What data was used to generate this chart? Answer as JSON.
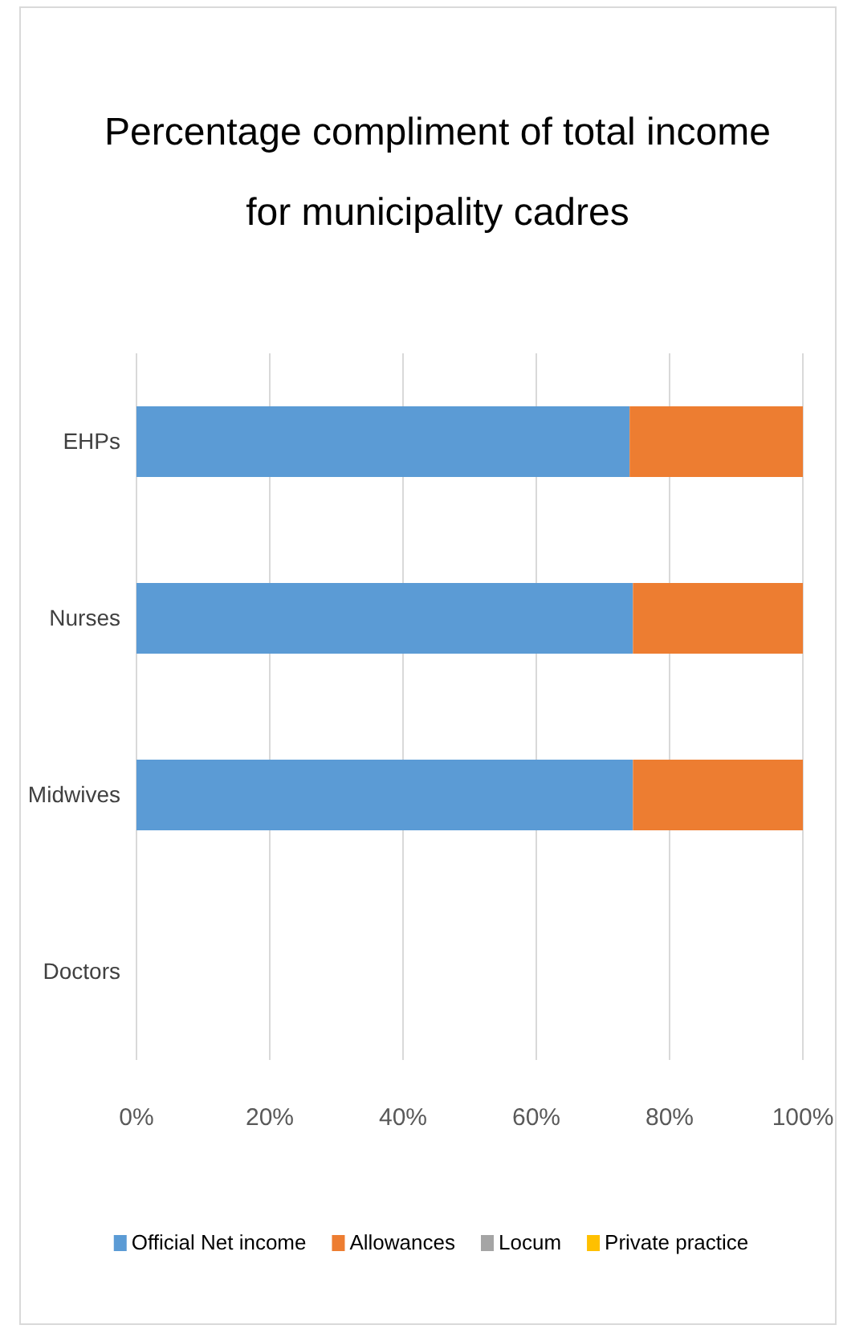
{
  "chart_data": {
    "type": "bar",
    "orientation": "horizontal",
    "stacked": true,
    "title": "Percentage compliment of total income for municipality cadres",
    "categories": [
      "EHPs",
      "Nurses",
      "Midwives",
      "Doctors"
    ],
    "series": [
      {
        "name": "Official Net income",
        "color": "#5b9bd5",
        "values": [
          74,
          74.5,
          74.5,
          null
        ]
      },
      {
        "name": "Allowances",
        "color": "#ed7d31",
        "values": [
          26,
          25.5,
          25.5,
          null
        ]
      },
      {
        "name": "Locum",
        "color": "#a5a5a5",
        "values": [
          0,
          0,
          0,
          null
        ]
      },
      {
        "name": "Private practice",
        "color": "#ffc000",
        "values": [
          0,
          0,
          0,
          null
        ]
      }
    ],
    "xlim": [
      0,
      100
    ],
    "xticks": [
      {
        "value": 0,
        "label": "0%"
      },
      {
        "value": 20,
        "label": "20%"
      },
      {
        "value": 40,
        "label": "40%"
      },
      {
        "value": 60,
        "label": "60%"
      },
      {
        "value": 80,
        "label": "80%"
      },
      {
        "value": 100,
        "label": "100%"
      }
    ],
    "grid": "x",
    "legend": "bottom"
  }
}
